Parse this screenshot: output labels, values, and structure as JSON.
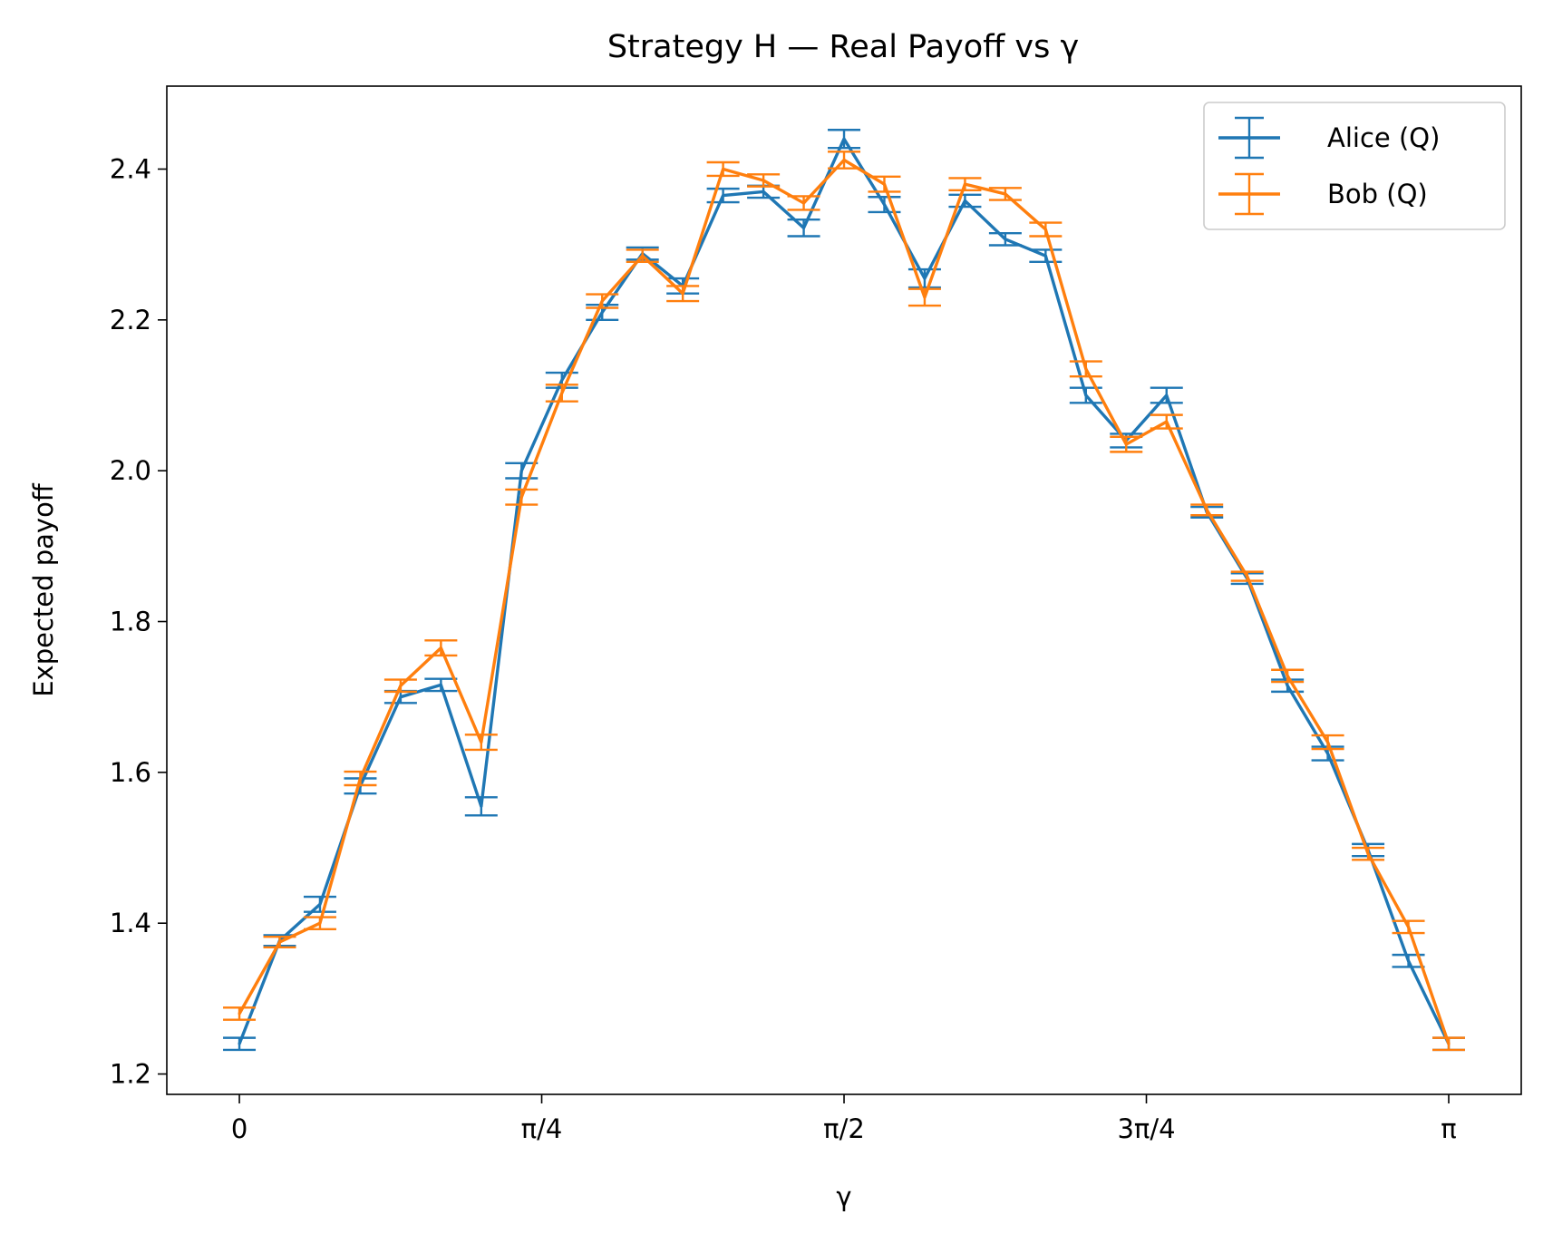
{
  "chart_data": {
    "type": "line",
    "title": "Strategy H — Real Payoff vs γ",
    "xlabel": "γ",
    "ylabel": "Expected payoff",
    "xlim": [
      -0.1885,
      3.33
    ],
    "ylim": [
      1.173,
      2.51
    ],
    "x_ticks": [
      {
        "value": 0,
        "label": "0"
      },
      {
        "value": 0.7854,
        "label": "π/4"
      },
      {
        "value": 1.5708,
        "label": "π/2"
      },
      {
        "value": 2.3562,
        "label": "3π/4"
      },
      {
        "value": 3.1416,
        "label": "π"
      }
    ],
    "y_ticks": [
      {
        "value": 1.2,
        "label": "1.2"
      },
      {
        "value": 1.4,
        "label": "1.4"
      },
      {
        "value": 1.6,
        "label": "1.6"
      },
      {
        "value": 1.8,
        "label": "1.8"
      },
      {
        "value": 2.0,
        "label": "2.0"
      },
      {
        "value": 2.2,
        "label": "2.2"
      },
      {
        "value": 2.4,
        "label": "2.4"
      }
    ],
    "grid": false,
    "legend_position": "top-right",
    "x": [
      0,
      0.1047,
      0.2094,
      0.3142,
      0.4189,
      0.5236,
      0.6283,
      0.733,
      0.8378,
      0.9425,
      1.0472,
      1.1519,
      1.2566,
      1.3614,
      1.4661,
      1.5708,
      1.6755,
      1.7802,
      1.885,
      1.9897,
      2.0944,
      2.1991,
      2.3038,
      2.4086,
      2.5133,
      2.618,
      2.7227,
      2.8274,
      2.9322,
      3.0369,
      3.1416
    ],
    "series": [
      {
        "name": "Alice (Q)",
        "color": "#1f77b4",
        "values": [
          1.24,
          1.377,
          1.425,
          1.582,
          1.7,
          1.716,
          1.555,
          2.0,
          2.12,
          2.21,
          2.288,
          2.245,
          2.365,
          2.37,
          2.322,
          2.44,
          2.353,
          2.255,
          2.358,
          2.307,
          2.285,
          2.1,
          2.04,
          2.1,
          1.945,
          1.857,
          1.715,
          1.625,
          1.497,
          1.35,
          1.24
        ],
        "error": [
          0.008,
          0.007,
          0.01,
          0.01,
          0.008,
          0.008,
          0.012,
          0.01,
          0.01,
          0.01,
          0.008,
          0.01,
          0.009,
          0.008,
          0.011,
          0.012,
          0.01,
          0.012,
          0.008,
          0.008,
          0.008,
          0.01,
          0.009,
          0.01,
          0.007,
          0.007,
          0.008,
          0.009,
          0.008,
          0.008,
          0.008
        ]
      },
      {
        "name": "Bob (Q)",
        "color": "#ff7f0e",
        "values": [
          1.28,
          1.375,
          1.4,
          1.592,
          1.715,
          1.765,
          1.64,
          1.965,
          2.103,
          2.225,
          2.285,
          2.235,
          2.4,
          2.385,
          2.355,
          2.412,
          2.38,
          2.23,
          2.38,
          2.367,
          2.32,
          2.135,
          2.035,
          2.065,
          1.948,
          1.86,
          1.728,
          1.64,
          1.492,
          1.395,
          1.24
        ],
        "error": [
          0.008,
          0.007,
          0.008,
          0.009,
          0.008,
          0.01,
          0.01,
          0.01,
          0.011,
          0.009,
          0.008,
          0.01,
          0.009,
          0.008,
          0.009,
          0.011,
          0.01,
          0.011,
          0.008,
          0.008,
          0.009,
          0.01,
          0.01,
          0.009,
          0.007,
          0.006,
          0.008,
          0.009,
          0.008,
          0.008,
          0.008
        ]
      }
    ]
  }
}
